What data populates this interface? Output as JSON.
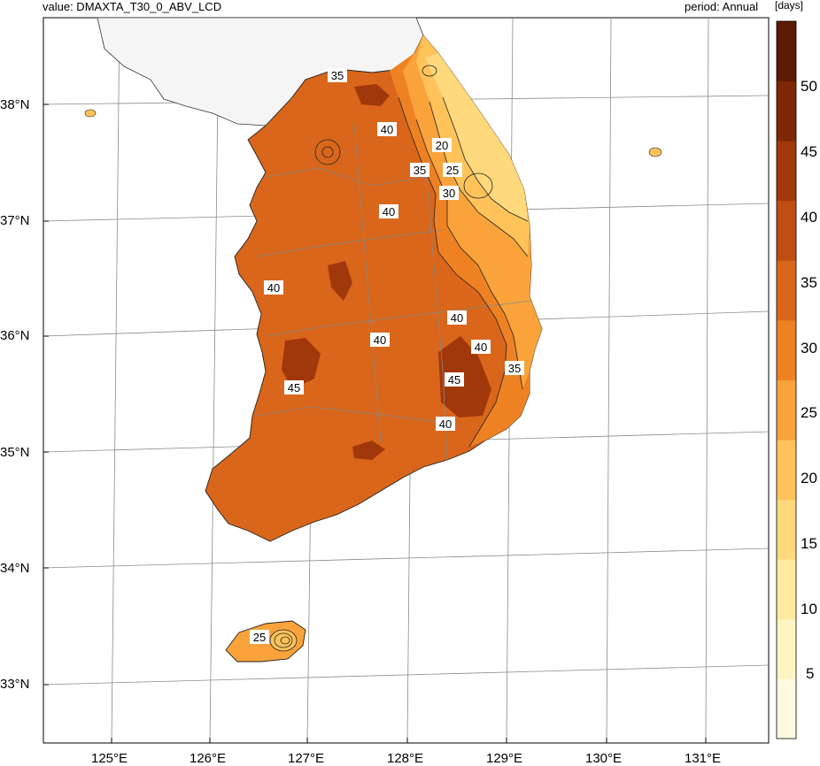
{
  "header": {
    "value_label": "value: DMAXTA_T30_0_ABV_LCD",
    "period_label": "period: Annual",
    "unit": "[days]"
  },
  "map": {
    "lat_labels": [
      "38°N",
      "37°N",
      "36°N",
      "35°N",
      "34°N",
      "33°N"
    ],
    "lon_labels": [
      "125°E",
      "126°E",
      "127°E",
      "128°E",
      "129°E",
      "130°E",
      "131°E"
    ],
    "contour_labels": [
      "35",
      "40",
      "20",
      "35",
      "25",
      "30",
      "40",
      "40",
      "40",
      "40",
      "40",
      "45",
      "45",
      "35",
      "40",
      "25"
    ]
  },
  "colorbar": {
    "ticks": [
      "5",
      "10",
      "15",
      "20",
      "25",
      "30",
      "35",
      "40",
      "45",
      "50"
    ],
    "colors": [
      "#fffbe3",
      "#fff5c2",
      "#ffeaa0",
      "#ffd97c",
      "#ffc35a",
      "#f9a33a",
      "#ee8223",
      "#d9661a",
      "#c04e12",
      "#a1380b",
      "#7e2706",
      "#5c1a02"
    ]
  }
}
